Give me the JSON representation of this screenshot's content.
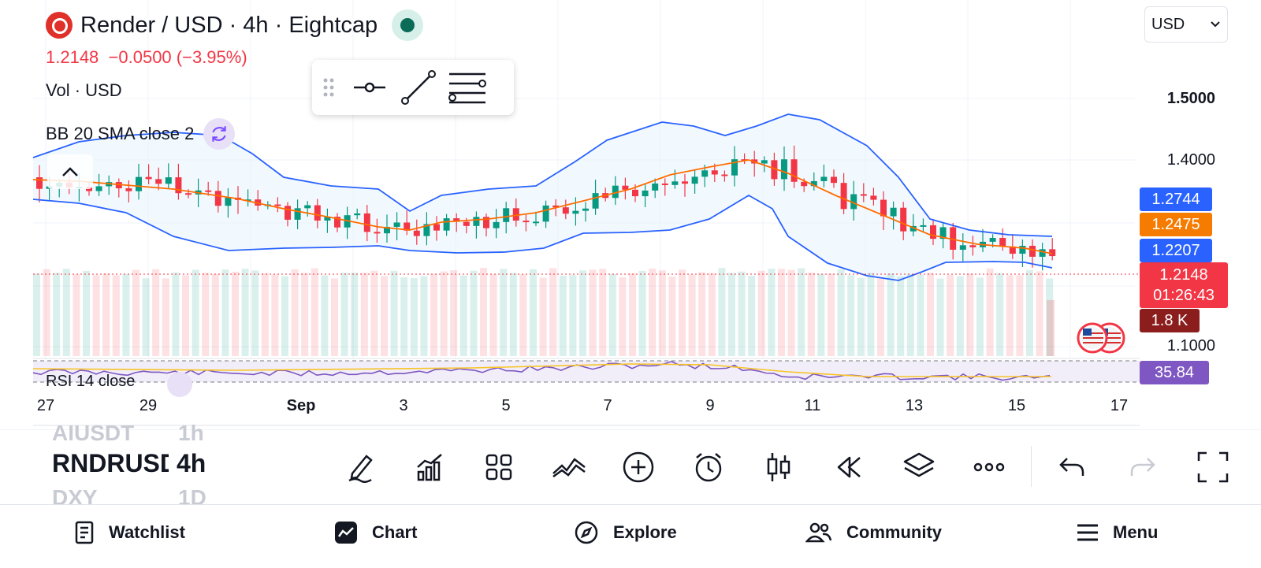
{
  "header": {
    "symbol_title": "Render / USD · 4h · Eightcap",
    "price": "1.2148",
    "change": "−0.0500 (−3.95%)",
    "volume_label": "Vol · USD",
    "bb_label": "BB 20 SMA close 2",
    "logo_icon": "render-logo-icon",
    "status_color": "#0a6b57"
  },
  "currency_select": {
    "value": "USD",
    "icon": "chevron-down-icon"
  },
  "price_axis": {
    "ticks": [
      "1.5000",
      "1.4000",
      "1.1000"
    ],
    "bb_upper_tag": "1.2744",
    "bb_basis_tag": "1.2475",
    "bb_lower_tag": "1.2207",
    "last_price_tag": "1.2148",
    "countdown": "01:26:43",
    "volume_tag": "1.8 K",
    "rsi_tag": "35.84"
  },
  "rsi": {
    "label": "RSI 14 close"
  },
  "time_axis": {
    "labels": [
      "27",
      "29",
      "Sep",
      "3",
      "5",
      "7",
      "9",
      "11",
      "13",
      "15",
      "17"
    ]
  },
  "colors": {
    "up": "#089981",
    "down": "#f23645",
    "bb_band": "#2962ff",
    "bb_basis": "#ff6d00",
    "rsi_line": "#7e57c2",
    "rsi_ma": "#f7c325",
    "upper_tag": "#2962ff",
    "basis_tag": "#f57c00",
    "price_tag": "#f23645",
    "volume_tag": "#8b1d1d",
    "rsi_tag": "#7e57c2"
  },
  "watch_picker": {
    "prev_symbol": "AIUSDT",
    "prev_interval": "1h",
    "symbol": "RNDRUSD",
    "interval": "4h",
    "next_symbol": "DXY",
    "next_interval": "1D"
  },
  "toolbar": {
    "items": [
      "pencil-icon",
      "indicators-icon",
      "templates-icon",
      "compare-icon",
      "add-icon",
      "alert-icon",
      "candle-type-icon",
      "replay-icon",
      "layers-icon",
      "more-icon",
      "undo-icon",
      "redo-icon",
      "fullscreen-icon"
    ]
  },
  "nav": {
    "watchlist": "Watchlist",
    "chart": "Chart",
    "explore": "Explore",
    "community": "Community",
    "menu": "Menu"
  }
}
